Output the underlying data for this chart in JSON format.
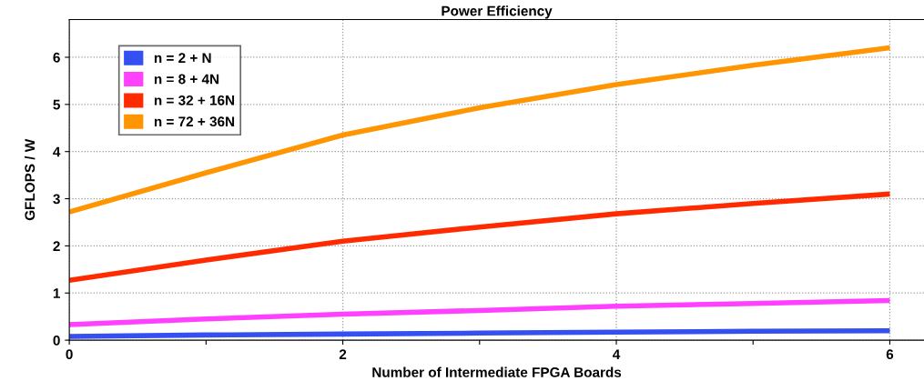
{
  "chart_data": {
    "type": "line",
    "title": "Power Efficiency",
    "xlabel": "Number of Intermediate FPGA Boards",
    "ylabel": "GFLOPS / W",
    "x": [
      0,
      1,
      2,
      3,
      4,
      5,
      6
    ],
    "series": [
      {
        "name": "n = 2 + N",
        "color": "#3550f0",
        "values": [
          0.08,
          0.11,
          0.13,
          0.15,
          0.17,
          0.19,
          0.2
        ]
      },
      {
        "name": "n = 8 + 4N",
        "color": "#ff40ff",
        "values": [
          0.33,
          0.45,
          0.55,
          0.63,
          0.72,
          0.78,
          0.84
        ]
      },
      {
        "name": "n = 32 + 16N",
        "color": "#ff2a00",
        "values": [
          1.27,
          1.7,
          2.1,
          2.4,
          2.68,
          2.9,
          3.1
        ]
      },
      {
        "name": "n = 72 + 36N",
        "color": "#ff9500",
        "values": [
          2.72,
          3.55,
          4.35,
          4.93,
          5.42,
          5.83,
          6.2
        ]
      }
    ],
    "xlim": [
      0,
      6.25
    ],
    "ylim": [
      0,
      6.8
    ],
    "xticks": [
      0,
      {
        "value": 1,
        "label": null
      },
      2,
      {
        "value": 3,
        "label": null
      },
      4,
      {
        "value": 5,
        "label": null
      },
      6
    ],
    "yticks": [
      0,
      1,
      2,
      3,
      4,
      5,
      6
    ],
    "grid": true,
    "legend": "top left",
    "marker": "none",
    "line_style": "solid"
  }
}
